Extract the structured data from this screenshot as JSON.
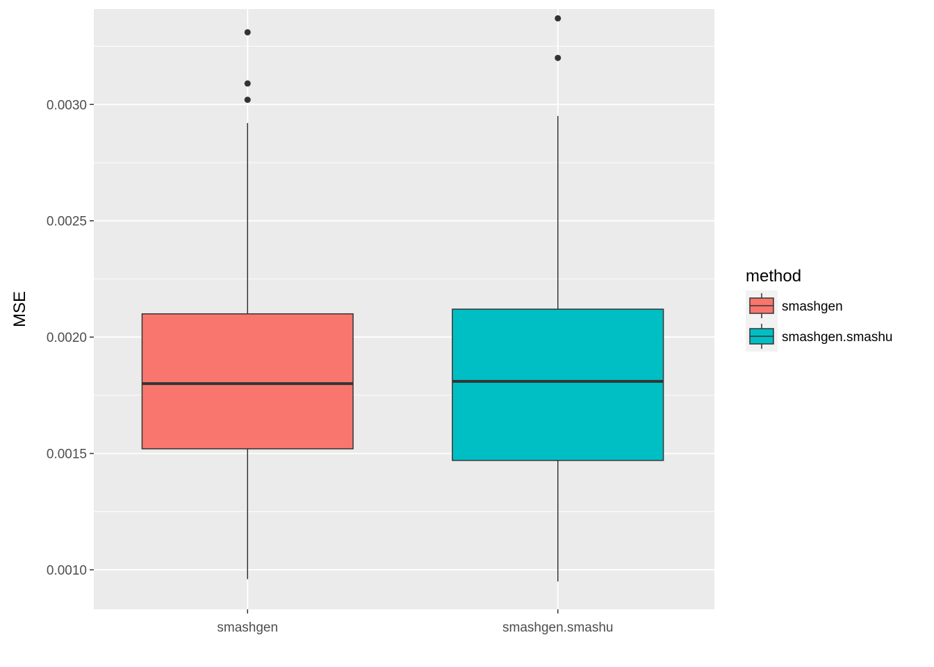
{
  "chart_data": {
    "type": "boxplot",
    "ylabel": "MSE",
    "xlabel": "",
    "ylim": [
      0.00083,
      0.00341
    ],
    "yticks": [
      0.001,
      0.0015,
      0.002,
      0.0025,
      0.003
    ],
    "ytick_labels": [
      "0.0010",
      "0.0015",
      "0.0020",
      "0.0025",
      "0.0030"
    ],
    "grid": true,
    "legend": {
      "title": "method",
      "position": "right",
      "entries": [
        {
          "label": "smashgen",
          "color": "#F8766D"
        },
        {
          "label": "smashgen.smashu",
          "color": "#00BFC4"
        }
      ]
    },
    "categories": [
      "smashgen",
      "smashgen.smashu"
    ],
    "series": [
      {
        "category": "smashgen",
        "color": "#F8766D",
        "whisker_low": 0.00096,
        "q1": 0.00152,
        "median": 0.0018,
        "q3": 0.0021,
        "whisker_high": 0.00292,
        "outliers": [
          0.00302,
          0.00309,
          0.00331
        ]
      },
      {
        "category": "smashgen.smashu",
        "color": "#00BFC4",
        "whisker_low": 0.00095,
        "q1": 0.00147,
        "median": 0.00181,
        "q3": 0.00212,
        "whisker_high": 0.00295,
        "outliers": [
          0.0032,
          0.00337
        ]
      }
    ]
  },
  "colors": {
    "panel_background": "#EBEBEB",
    "grid_major": "#FFFFFF",
    "box_outline": "#333333"
  }
}
